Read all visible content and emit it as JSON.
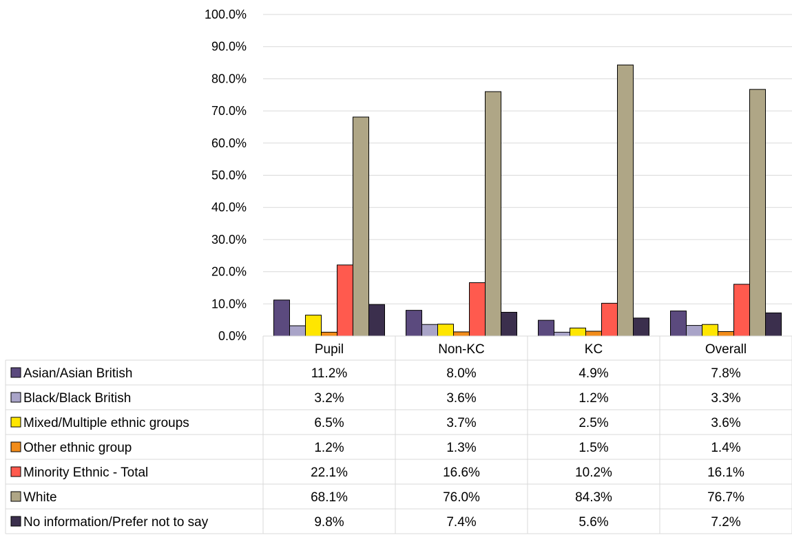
{
  "chart_data": {
    "type": "bar",
    "categories": [
      "Pupil",
      "Non-KC",
      "KC",
      "Overall"
    ],
    "ylim": [
      0,
      100
    ],
    "yticks": [
      "0.0%",
      "10.0%",
      "20.0%",
      "30.0%",
      "40.0%",
      "50.0%",
      "60.0%",
      "70.0%",
      "80.0%",
      "90.0%",
      "100.0%"
    ],
    "grid": true,
    "legend": "data-table",
    "series": [
      {
        "name": "Asian/Asian British",
        "color": "#5b4a7e",
        "values": [
          11.2,
          8.0,
          4.9,
          7.8
        ],
        "labels": [
          "11.2%",
          "8.0%",
          "4.9%",
          "7.8%"
        ]
      },
      {
        "name": "Black/Black British",
        "color": "#a9a4c8",
        "values": [
          3.2,
          3.6,
          1.2,
          3.3
        ],
        "labels": [
          "3.2%",
          "3.6%",
          "1.2%",
          "3.3%"
        ]
      },
      {
        "name": "Mixed/Multiple ethnic groups",
        "color": "#ffe600",
        "values": [
          6.5,
          3.7,
          2.5,
          3.6
        ],
        "labels": [
          "6.5%",
          "3.7%",
          "2.5%",
          "3.6%"
        ]
      },
      {
        "name": "Other ethnic group",
        "color": "#f28c1a",
        "values": [
          1.2,
          1.3,
          1.5,
          1.4
        ],
        "labels": [
          "1.2%",
          "1.3%",
          "1.5%",
          "1.4%"
        ]
      },
      {
        "name": "Minority Ethnic - Total",
        "color": "#ff5a4e",
        "values": [
          22.1,
          16.6,
          10.2,
          16.1
        ],
        "labels": [
          "22.1%",
          "16.6%",
          "10.2%",
          "16.1%"
        ]
      },
      {
        "name": "White",
        "color": "#afa686",
        "values": [
          68.1,
          76.0,
          84.3,
          76.7
        ],
        "labels": [
          "68.1%",
          "76.0%",
          "84.3%",
          "76.7%"
        ]
      },
      {
        "name": "No information/Prefer not to say",
        "color": "#3b2f4d",
        "values": [
          9.8,
          7.4,
          5.6,
          7.2
        ],
        "labels": [
          "9.8%",
          "7.4%",
          "5.6%",
          "7.2%"
        ]
      }
    ]
  }
}
